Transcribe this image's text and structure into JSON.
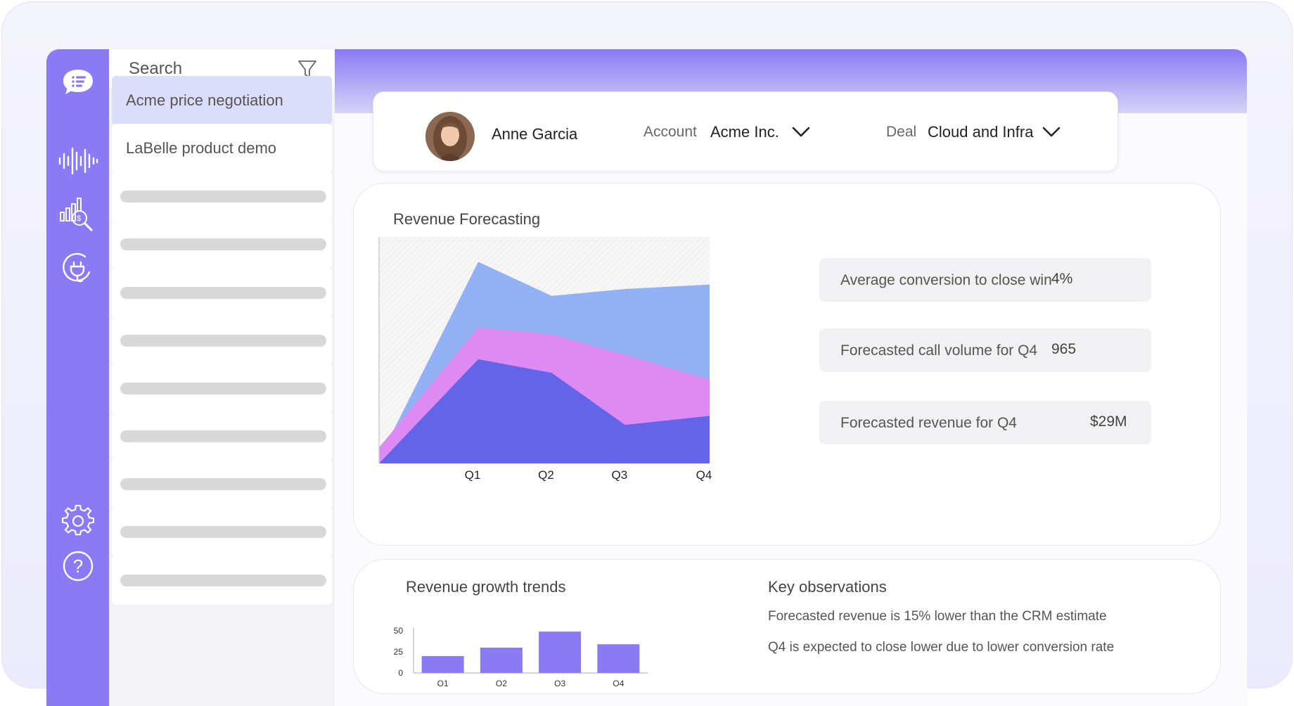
{
  "colors": {
    "accent": "#8b7af5",
    "series_top": "#93b1f5",
    "series_mid": "#dd8bf3",
    "series_bottom": "#6464e9",
    "bars": "#8b7af5"
  },
  "rail": {
    "icons": [
      "chat-logo-icon",
      "audio-wave-icon",
      "analytics-search-icon",
      "plug-icon",
      "gear-icon",
      "help-icon"
    ]
  },
  "search": {
    "placeholder": "Search"
  },
  "list": {
    "items": [
      {
        "label": "Acme price negotiation",
        "active": true
      },
      {
        "label": "LaBelle product demo",
        "active": false
      }
    ],
    "placeholder_rows": 9
  },
  "header": {
    "name": "Anne Garcia",
    "account_label": "Account",
    "account_value": "Acme Inc.",
    "deal_label": "Deal",
    "deal_value": "Cloud and Infra"
  },
  "forecast": {
    "title": "Revenue Forecasting",
    "stats": [
      {
        "label": "Average conversion to close win",
        "value": "4%"
      },
      {
        "label": "Forecasted call volume for Q4",
        "value": "965"
      },
      {
        "label": "Forecasted revenue for Q4",
        "value": "$29M"
      }
    ]
  },
  "growth": {
    "title": "Revenue growth trends"
  },
  "observations": {
    "title": "Key observations",
    "items": [
      "Forecasted revenue is 15% lower than the CRM estimate",
      "Q4 is expected to close lower due to lower conversion rate"
    ]
  },
  "chart_data": [
    {
      "type": "area",
      "title": "Revenue Forecasting",
      "categories": [
        "Q1",
        "Q2",
        "Q3",
        "Q4"
      ],
      "x": [
        0,
        1.35,
        2.35,
        3.35,
        4.5
      ],
      "stacked": false,
      "ylim": [
        0,
        100
      ],
      "grid": false,
      "series": [
        {
          "values": [
            2,
            89,
            74,
            77,
            79
          ]
        },
        {
          "values": [
            7,
            60,
            57,
            48,
            37
          ]
        },
        {
          "values": [
            0,
            46,
            40,
            17,
            21
          ]
        }
      ]
    },
    {
      "type": "bar",
      "title": "Revenue growth trends",
      "categories": [
        "Q1",
        "Q2",
        "Q3",
        "Q4"
      ],
      "values": [
        20,
        30,
        49,
        34
      ],
      "yticks": [
        "50",
        "25",
        "0"
      ],
      "ylim": [
        0,
        50
      ]
    }
  ]
}
